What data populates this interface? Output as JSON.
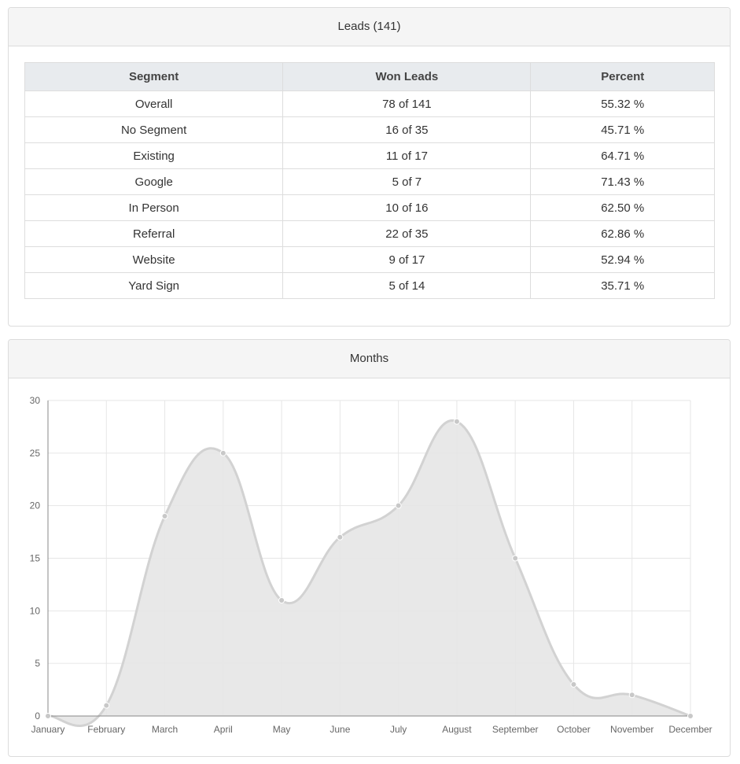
{
  "leads_panel": {
    "title": "Leads (141)",
    "columns": [
      "Segment",
      "Won Leads",
      "Percent"
    ],
    "rows": [
      {
        "segment": "Overall",
        "won": "78 of 141",
        "percent": "55.32 %"
      },
      {
        "segment": "No Segment",
        "won": "16 of 35",
        "percent": "45.71 %"
      },
      {
        "segment": "Existing",
        "won": "11 of 17",
        "percent": "64.71 %"
      },
      {
        "segment": "Google",
        "won": "5 of 7",
        "percent": "71.43 %"
      },
      {
        "segment": "In Person",
        "won": "10 of 16",
        "percent": "62.50 %"
      },
      {
        "segment": "Referral",
        "won": "22 of 35",
        "percent": "62.86 %"
      },
      {
        "segment": "Website",
        "won": "9 of 17",
        "percent": "52.94 %"
      },
      {
        "segment": "Yard Sign",
        "won": "5 of 14",
        "percent": "35.71 %"
      }
    ]
  },
  "months_panel": {
    "title": "Months"
  },
  "chart_data": {
    "type": "area",
    "categories": [
      "January",
      "February",
      "March",
      "April",
      "May",
      "June",
      "July",
      "August",
      "September",
      "October",
      "November",
      "December"
    ],
    "series": [
      {
        "values": [
          0,
          1,
          19,
          25,
          11,
          17,
          20,
          28,
          15,
          3,
          2,
          0
        ]
      }
    ],
    "title": "",
    "xlabel": "",
    "ylabel": "",
    "ylim": [
      0,
      30
    ],
    "yticks": [
      0,
      5,
      10,
      15,
      20,
      25,
      30
    ],
    "grid": true,
    "legend": "none",
    "colors": {
      "fill": "#e5e5e5",
      "line": "#d2d2d2",
      "point": "#c8c8c8",
      "grid": "#e6e6e6",
      "axis": "#888888"
    }
  }
}
